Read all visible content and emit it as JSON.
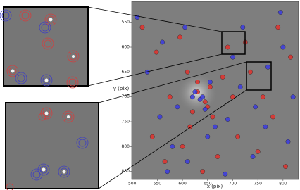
{
  "chart_data": {
    "type": "scatter",
    "xlabel": "x (pix)",
    "ylabel": "y (pix)",
    "xlim": [
      499,
      831
    ],
    "ylim": [
      508,
      866
    ],
    "y_inverted": true,
    "xticks": [
      500,
      550,
      600,
      650,
      700,
      750,
      800
    ],
    "yticks": [
      550,
      600,
      650,
      700,
      750,
      800,
      850
    ],
    "series": [
      {
        "color": "#e0302c",
        "x": [
          520,
          548,
          575,
          610,
          630,
          645,
          655,
          620,
          660,
          690,
          710,
          735,
          760,
          790,
          815,
          540,
          565,
          600,
          640,
          670,
          700,
          725,
          750,
          780,
          805,
          630,
          650,
          615,
          595,
          680
        ],
        "values": [
          560,
          610,
          700,
          650,
          690,
          710,
          680,
          730,
          740,
          600,
          780,
          650,
          700,
          560,
          620,
          780,
          830,
          800,
          850,
          820,
          700,
          590,
          810,
          740,
          840,
          670,
          720,
          760,
          580,
          660
        ]
      },
      {
        "color": "#3a3ae0",
        "x": [
          510,
          530,
          560,
          590,
          620,
          635,
          645,
          625,
          665,
          700,
          720,
          745,
          770,
          800,
          820,
          555,
          580,
          610,
          650,
          685,
          715,
          740,
          765,
          795,
          810,
          640,
          655,
          605,
          570,
          690
        ],
        "values": [
          540,
          650,
          590,
          720,
          700,
          705,
          725,
          690,
          760,
          620,
          560,
          720,
          640,
          600,
          700,
          740,
          800,
          830,
          780,
          855,
          680,
          820,
          760,
          530,
          790,
          700,
          670,
          560,
          850,
          745
        ]
      }
    ]
  }
}
